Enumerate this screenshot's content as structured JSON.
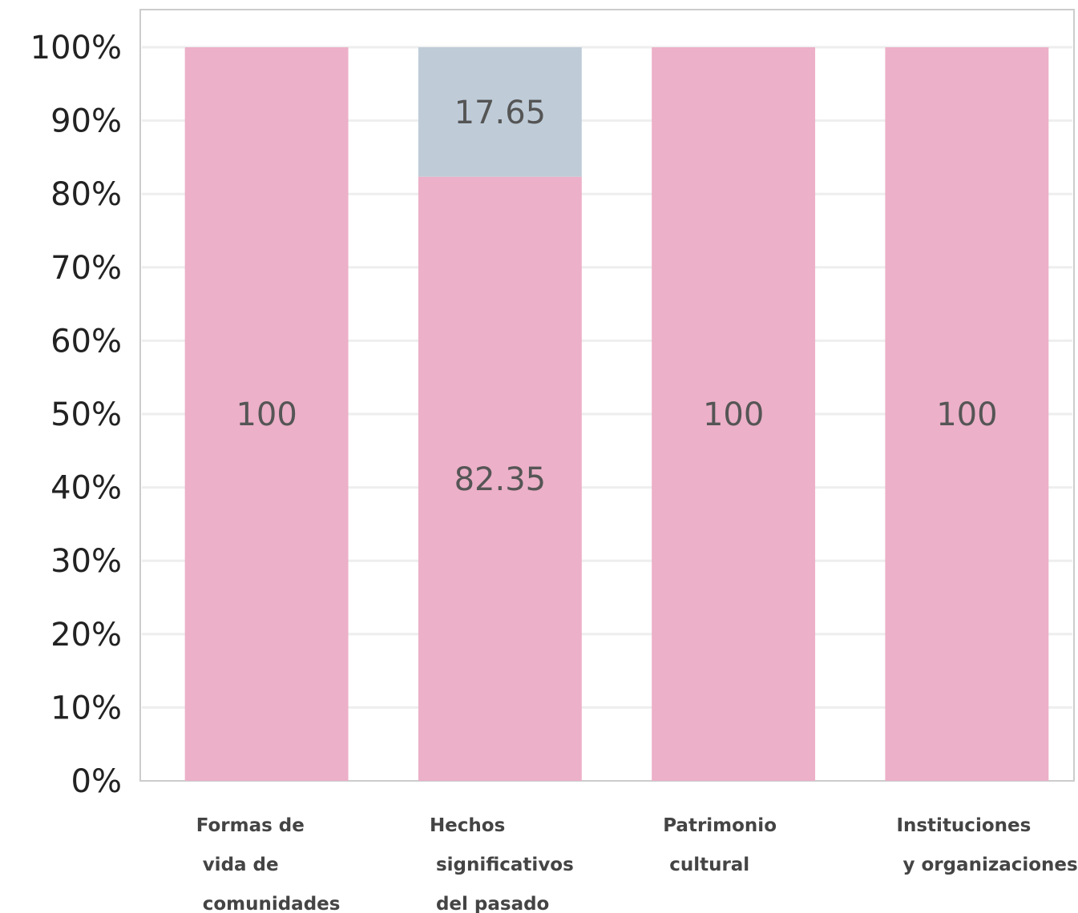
{
  "chart_data": {
    "type": "bar",
    "stacked": true,
    "categories": [
      [
        "Formas de",
        "vida de",
        "comunidades"
      ],
      [
        "Hechos",
        "significativos",
        "del pasado"
      ],
      [
        "Patrimonio",
        "cultural"
      ],
      [
        "Instituciones",
        "y organizaciones"
      ]
    ],
    "series": [
      {
        "values": [
          100,
          82.35,
          100,
          100
        ],
        "color": "#ecb0c8"
      },
      {
        "values": [
          0,
          17.65,
          0,
          0
        ],
        "color": "#bfccd8"
      }
    ],
    "ylim": [
      0,
      100
    ],
    "y_ticks": [
      "0%",
      "10%",
      "20%",
      "30%",
      "40%",
      "50%",
      "60%",
      "70%",
      "80%",
      "90%",
      "100%"
    ],
    "grid": true,
    "legend": "none",
    "title": "",
    "xlabel": "",
    "ylabel": ""
  }
}
